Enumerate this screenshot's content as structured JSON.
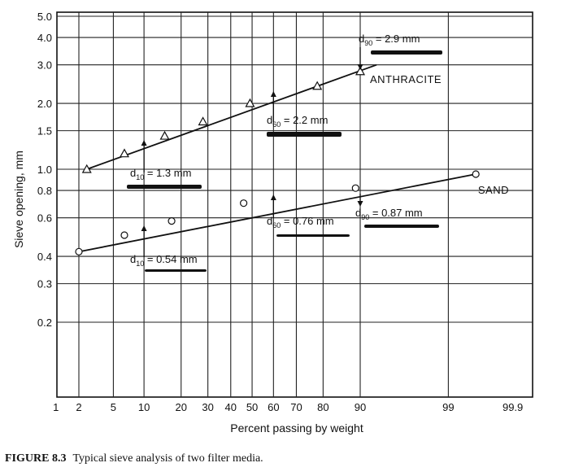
{
  "chart_data": {
    "type": "line",
    "title": "",
    "xlabel": "Percent passing by weight",
    "ylabel": "Sieve opening, mm",
    "x_scale": "probability",
    "y_scale": "log",
    "ylim": [
      0.1,
      5.0
    ],
    "xlim": [
      1,
      99.9
    ],
    "x_ticks": [
      {
        "value": 1,
        "label": "1"
      },
      {
        "value": 2,
        "label": "2"
      },
      {
        "value": 5,
        "label": "5"
      },
      {
        "value": 10,
        "label": "10"
      },
      {
        "value": 20,
        "label": "20"
      },
      {
        "value": 30,
        "label": "30"
      },
      {
        "value": 40,
        "label": "40"
      },
      {
        "value": 50,
        "label": "50"
      },
      {
        "value": 60,
        "label": "60"
      },
      {
        "value": 70,
        "label": "70"
      },
      {
        "value": 80,
        "label": "80"
      },
      {
        "value": 90,
        "label": "90"
      },
      {
        "value": 99,
        "label": "99"
      },
      {
        "value": 99.9,
        "label": "99.9"
      }
    ],
    "y_ticks": [
      {
        "value": 5.0,
        "label": "5.0"
      },
      {
        "value": 4.0,
        "label": "4.0"
      },
      {
        "value": 3.0,
        "label": "3.0"
      },
      {
        "value": 2.0,
        "label": "2.0"
      },
      {
        "value": 1.5,
        "label": "1.5"
      },
      {
        "value": 1.0,
        "label": "1.0"
      },
      {
        "value": 0.8,
        "label": "0.8"
      },
      {
        "value": 0.6,
        "label": "0.6"
      },
      {
        "value": 0.4,
        "label": "0.4"
      },
      {
        "value": 0.3,
        "label": "0.3"
      },
      {
        "value": 0.2,
        "label": "0.2"
      }
    ],
    "series": [
      {
        "name": "ANTHRACITE",
        "marker": "triangle",
        "line": {
          "x1": 2.5,
          "y1": 1.0,
          "x2": 93,
          "y2": 3.0
        },
        "points": [
          {
            "x": 2.5,
            "y": 1.0
          },
          {
            "x": 6.5,
            "y": 1.18
          },
          {
            "x": 15,
            "y": 1.42
          },
          {
            "x": 28,
            "y": 1.65
          },
          {
            "x": 49,
            "y": 2.0
          },
          {
            "x": 78,
            "y": 2.4
          },
          {
            "x": 90,
            "y": 2.8
          }
        ]
      },
      {
        "name": "SAND",
        "marker": "circle",
        "line": {
          "x1": 2,
          "y1": 0.42,
          "x2": 99.6,
          "y2": 0.95
        },
        "points": [
          {
            "x": 2,
            "y": 0.42
          },
          {
            "x": 6.5,
            "y": 0.5
          },
          {
            "x": 17,
            "y": 0.58
          },
          {
            "x": 46,
            "y": 0.7
          },
          {
            "x": 89,
            "y": 0.82
          },
          {
            "x": 99.6,
            "y": 0.95
          }
        ]
      }
    ],
    "annotations": [
      {
        "id": "anth-d10",
        "var": "d",
        "sub": "10",
        "rest": " = 1.3 mm",
        "arrow_x": 10,
        "arrow_dir": "up"
      },
      {
        "id": "anth-d60",
        "var": "d",
        "sub": "60",
        "rest": " = 2.2 mm",
        "arrow_x": 60,
        "arrow_dir": "up"
      },
      {
        "id": "anth-d90",
        "var": "d",
        "sub": "90",
        "rest": " = 2.9 mm",
        "arrow_x": 90,
        "arrow_dir": "down"
      },
      {
        "id": "sand-d10",
        "var": "d",
        "sub": "10",
        "rest": " = 0.54 mm",
        "arrow_x": 10,
        "arrow_dir": "up"
      },
      {
        "id": "sand-d60",
        "var": "d",
        "sub": "60",
        "rest": " = 0.76 mm",
        "arrow_x": 60,
        "arrow_dir": "up"
      },
      {
        "id": "sand-d90",
        "var": "d",
        "sub": "90",
        "rest": " = 0.87 mm",
        "arrow_x": 90,
        "arrow_dir": "down"
      }
    ]
  },
  "caption": {
    "label": "FIGURE 8.3",
    "text": "Typical sieve analysis of two filter media."
  }
}
